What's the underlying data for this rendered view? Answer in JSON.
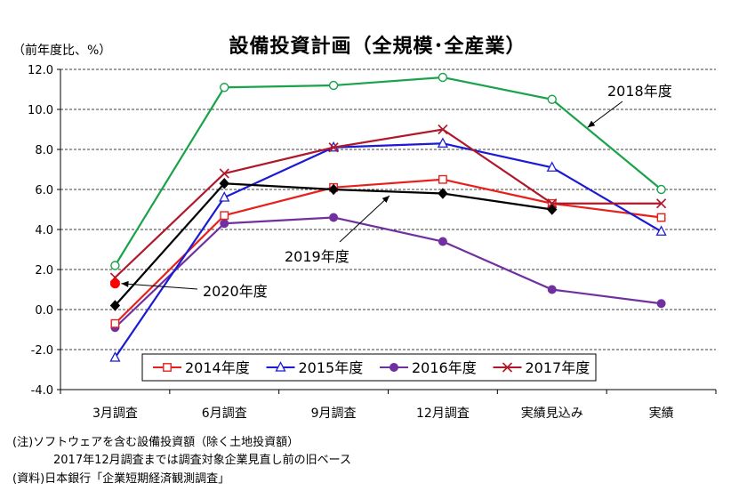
{
  "title": "設備投資計画（全規模･全産業）",
  "ylabel": "（前年度比、%）",
  "notes": {
    "line1": "(注)ソフトウェアを含む設備投資額（除く土地投資額）",
    "line2": "2017年12月調査までは調査対象企業見直し前の旧ベース",
    "line3": "(資料)日本銀行「企業短期経済観測調査」"
  },
  "chart_data": {
    "type": "line",
    "categories": [
      "3月調査",
      "6月調査",
      "9月調査",
      "12月調査",
      "実績見込み",
      "実績"
    ],
    "ylim": [
      -4.0,
      12.0
    ],
    "yticks": [
      "-4.0",
      "-2.0",
      "0.0",
      "2.0",
      "4.0",
      "6.0",
      "8.0",
      "10.0",
      "12.0"
    ],
    "grid": true,
    "legend_position": "bottom-center",
    "series": [
      {
        "name": "2014年度",
        "color": "#e8201c",
        "marker": "square",
        "values": [
          -0.7,
          4.7,
          6.1,
          6.5,
          5.3,
          4.6
        ],
        "in_legend": true
      },
      {
        "name": "2015年度",
        "color": "#1b1bd6",
        "marker": "triangle",
        "values": [
          -2.4,
          5.6,
          8.1,
          8.3,
          7.1,
          3.9
        ],
        "in_legend": true
      },
      {
        "name": "2016年度",
        "color": "#7030a0",
        "marker": "circle",
        "values": [
          -0.9,
          4.3,
          4.6,
          3.4,
          1.0,
          0.3
        ],
        "in_legend": true
      },
      {
        "name": "2017年度",
        "color": "#b0182a",
        "marker": "star",
        "values": [
          1.6,
          6.8,
          8.1,
          9.0,
          5.3,
          5.3
        ],
        "in_legend": true
      },
      {
        "name": "2018年度",
        "color": "#1aa34a",
        "marker": "open-circle",
        "values": [
          2.2,
          11.1,
          11.2,
          11.6,
          10.5,
          6.0
        ],
        "in_legend": false
      },
      {
        "name": "2019年度",
        "color": "#000000",
        "marker": "diamond",
        "values": [
          0.2,
          6.3,
          6.0,
          5.8,
          5.0,
          null
        ],
        "in_legend": false
      },
      {
        "name": "2020年度",
        "color": "#ff0000",
        "marker": "filled-circle",
        "values": [
          1.3,
          null,
          null,
          null,
          null,
          null
        ],
        "in_legend": false
      }
    ],
    "annotations": [
      {
        "text": "2018年度",
        "series": "2018年度"
      },
      {
        "text": "2019年度",
        "series": "2019年度"
      },
      {
        "text": "2020年度",
        "series": "2020年度"
      }
    ]
  }
}
